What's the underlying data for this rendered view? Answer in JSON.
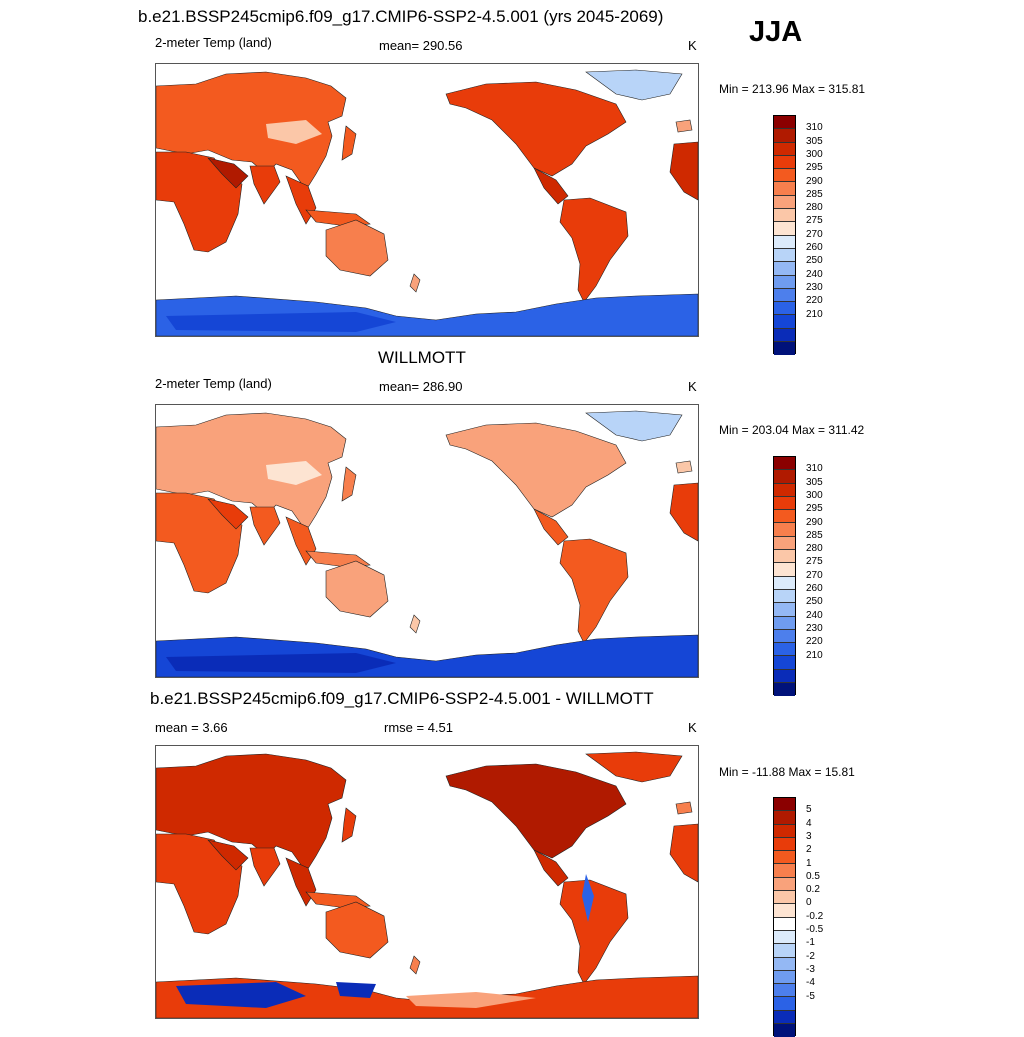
{
  "season": "JJA",
  "palette_abs": [
    "#8b0000",
    "#b01a00",
    "#cf2900",
    "#e83c0a",
    "#f35a1f",
    "#f77f4d",
    "#f9a27b",
    "#fbc7a8",
    "#fde4d2",
    "#dcebfb",
    "#b8d4f8",
    "#94b8f4",
    "#6f9cf0",
    "#4d7fec",
    "#2b62e6",
    "#1546d6",
    "#0a2cb8",
    "#00127a"
  ],
  "palette_diff": [
    "#8b0000",
    "#b01a00",
    "#cf2900",
    "#e83c0a",
    "#f35a1f",
    "#f77f4d",
    "#f9a27b",
    "#fbc7a8",
    "#fde4d2",
    "#ffffff",
    "#dcebfb",
    "#b8d4f8",
    "#94b8f4",
    "#6f9cf0",
    "#4d7fec",
    "#2b62e6",
    "#0a2cb8",
    "#00127a"
  ],
  "panels": [
    {
      "title": "b.e21.BSSP245cmip6.f09_g17.CMIP6-SSP2-4.5.001 (yrs 2045-2069)",
      "left_label": "2-meter Temp (land)",
      "center_label": "mean= 290.56",
      "units": "K",
      "minmax": "Min = 213.96 Max = 315.81",
      "levels": [
        "310",
        "305",
        "300",
        "295",
        "290",
        "285",
        "280",
        "275",
        "270",
        "260",
        "250",
        "240",
        "230",
        "220",
        "210"
      ]
    },
    {
      "title": "WILLMOTT",
      "left_label": "2-meter Temp (land)",
      "center_label": "mean= 286.90",
      "units": "K",
      "minmax": "Min = 203.04 Max = 311.42",
      "levels": [
        "310",
        "305",
        "300",
        "295",
        "290",
        "285",
        "280",
        "275",
        "270",
        "260",
        "250",
        "240",
        "230",
        "220",
        "210"
      ]
    },
    {
      "title": "b.e21.BSSP245cmip6.f09_g17.CMIP6-SSP2-4.5.001 - WILLMOTT",
      "left_label": "mean =   3.66",
      "center_label": "rmse =   4.51",
      "units": "K",
      "minmax": "Min = -11.88 Max =  15.81",
      "levels": [
        "5",
        "4",
        "3",
        "2",
        "1",
        "0.5",
        "0.2",
        "0",
        "-0.2",
        "-0.5",
        "-1",
        "-2",
        "-3",
        "-4",
        "-5"
      ]
    }
  ]
}
